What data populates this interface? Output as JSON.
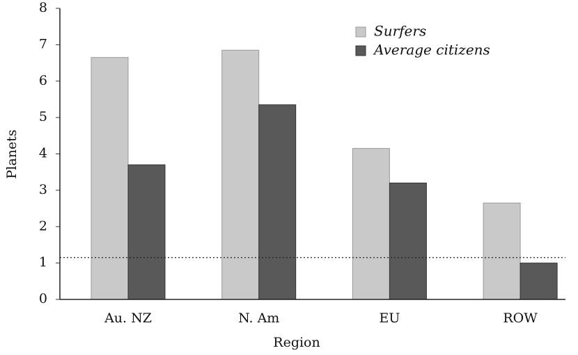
{
  "chart_data": {
    "type": "bar",
    "x_label": "Region",
    "y_label": "Planets",
    "categories": [
      "Au. NZ",
      "N. Am",
      "EU",
      "ROW"
    ],
    "series": [
      {
        "name": "Surfers",
        "color": "#c9c9c9",
        "values": [
          6.65,
          6.85,
          4.15,
          2.65
        ]
      },
      {
        "name": "Average citizens",
        "color": "#595959",
        "values": [
          3.7,
          5.35,
          3.2,
          1.0
        ]
      }
    ],
    "hline": 1.15,
    "ylim": [
      0,
      8
    ],
    "yticks": [
      0,
      1,
      2,
      3,
      4,
      5,
      6,
      7,
      8
    ],
    "legend": "upper right"
  }
}
